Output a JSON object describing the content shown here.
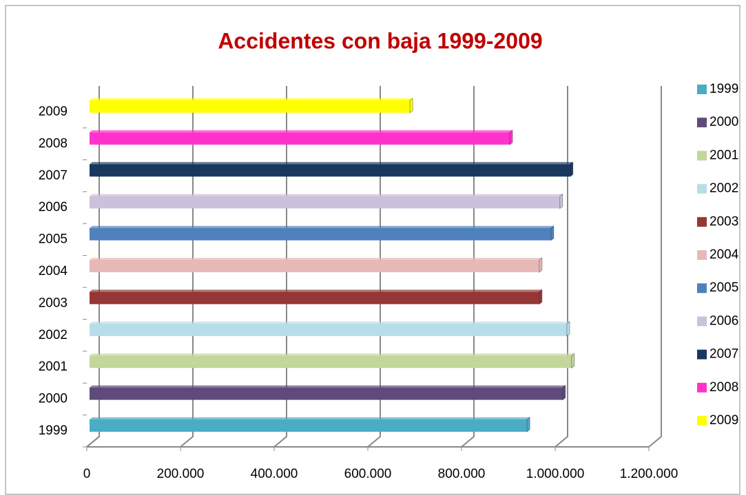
{
  "chart_data": {
    "type": "bar3d-horizontal",
    "title": "Accidentes con baja 1999-2009",
    "categories": [
      "1999",
      "2000",
      "2001",
      "2002",
      "2003",
      "2004",
      "2005",
      "2006",
      "2007",
      "2008",
      "2009"
    ],
    "values": [
      934000,
      1010000,
      1029000,
      1019000,
      960000,
      960000,
      985000,
      1004000,
      1026000,
      897000,
      684000
    ],
    "colors": [
      "#4bacc6",
      "#604a7b",
      "#c3d69b",
      "#b7dee8",
      "#953735",
      "#e6b9b8",
      "#4f81bd",
      "#ccc1da",
      "#17375e",
      "#ff33cc",
      "#ffff00"
    ],
    "xlim": [
      0,
      1200000
    ],
    "xticks": [
      0,
      {
        "value": 200000,
        "label": "200.000"
      },
      {
        "value": 400000,
        "label": "400.000"
      },
      {
        "value": 600000,
        "label": "600.000"
      },
      {
        "value": 800000,
        "label": "800.000"
      },
      {
        "value": 1000000,
        "label": "1.000.000"
      },
      {
        "value": 1200000,
        "label": "1.200.000"
      }
    ],
    "grid": true,
    "legend": "right"
  }
}
